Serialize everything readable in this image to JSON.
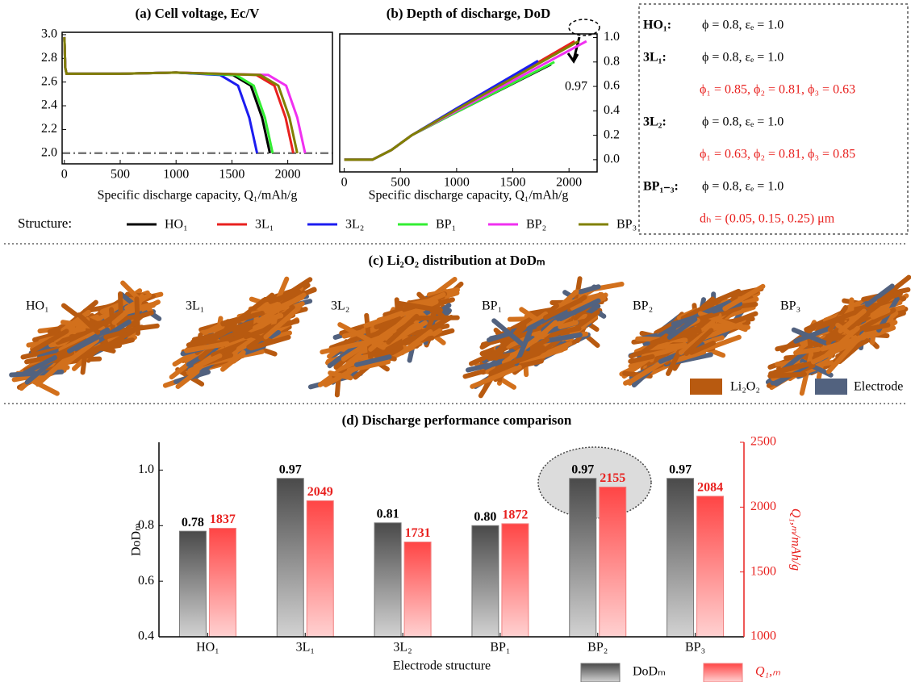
{
  "chart_data": [
    {
      "type": "line",
      "title": "(a) Cell voltage, Ec/V",
      "x_label": "Specific discharge capacity, Q₁/mAh/g",
      "xlim": [
        -20,
        2400
      ],
      "xticks": [
        0,
        500,
        1000,
        1500,
        2000
      ],
      "ylim": [
        1.91,
        3.02
      ],
      "yticks": [
        {
          "value": 2,
          "label": "2.0"
        },
        2.2,
        2.4,
        2.6,
        2.8,
        {
          "value": 3,
          "label": "3.0"
        }
      ],
      "reference_line": 2,
      "series": [
        {
          "name": "HO₁",
          "color": "#000000",
          "x": [
            0,
            8,
            20,
            500,
            1000,
            1510,
            1670,
            1770,
            1840
          ],
          "values": [
            2.98,
            2.72,
            2.67,
            2.67,
            2.68,
            2.66,
            2.57,
            2.3,
            2.0
          ]
        },
        {
          "name": "3L₁",
          "color": "#e8211f",
          "x": [
            0,
            8,
            20,
            500,
            1000,
            1720,
            1880,
            1980,
            2050
          ],
          "values": [
            2.98,
            2.72,
            2.67,
            2.67,
            2.68,
            2.66,
            2.57,
            2.3,
            2.0
          ]
        },
        {
          "name": "3L₂",
          "color": "#1c1cf0",
          "x": [
            0,
            8,
            20,
            500,
            1000,
            1395,
            1555,
            1655,
            1725
          ],
          "values": [
            2.98,
            2.72,
            2.67,
            2.67,
            2.68,
            2.66,
            2.57,
            2.3,
            2.0
          ]
        },
        {
          "name": "BP₁",
          "color": "#33ee33",
          "x": [
            0,
            8,
            20,
            500,
            1000,
            1535,
            1695,
            1795,
            1865
          ],
          "values": [
            2.98,
            2.72,
            2.67,
            2.67,
            2.68,
            2.66,
            2.57,
            2.3,
            2.0
          ]
        },
        {
          "name": "BP₂",
          "color": "#f030f0",
          "x": [
            0,
            8,
            20,
            500,
            1000,
            1825,
            1985,
            2085,
            2155
          ],
          "values": [
            2.98,
            2.72,
            2.67,
            2.67,
            2.68,
            2.66,
            2.57,
            2.3,
            2.0
          ]
        },
        {
          "name": "BP₃",
          "color": "#808000",
          "x": [
            0,
            8,
            20,
            500,
            1000,
            1755,
            1915,
            2015,
            2085
          ],
          "values": [
            2.98,
            2.72,
            2.67,
            2.67,
            2.68,
            2.66,
            2.57,
            2.3,
            2.0
          ]
        }
      ]
    },
    {
      "type": "line",
      "title": "(b) Depth of discharge, DoD",
      "x_label": "Specific discharge capacity, Q₁/mAh/g",
      "xlim": [
        -40,
        2250
      ],
      "xticks": [
        0,
        500,
        1000,
        1500,
        2000
      ],
      "ylim": [
        -0.1,
        1.03
      ],
      "yticks": [
        {
          "value": 0,
          "label": "0.0"
        },
        0.2,
        0.4,
        0.6,
        0.8,
        {
          "value": 1,
          "label": "1.0"
        }
      ],
      "annotation": "0.97",
      "series": [
        {
          "color": "#000000",
          "x": [
            0,
            250,
            420,
            600,
            1000,
            1840
          ],
          "values": [
            0,
            0,
            0.08,
            0.2,
            0.39,
            0.78
          ]
        },
        {
          "color": "#e8211f",
          "x": [
            0,
            250,
            420,
            600,
            1000,
            2050
          ],
          "values": [
            0,
            0,
            0.08,
            0.2,
            0.41,
            0.97
          ]
        },
        {
          "color": "#1c1cf0",
          "x": [
            0,
            250,
            420,
            600,
            1000,
            1725
          ],
          "values": [
            0,
            0,
            0.08,
            0.2,
            0.42,
            0.81
          ]
        },
        {
          "color": "#33ee33",
          "x": [
            0,
            250,
            420,
            600,
            1000,
            1870
          ],
          "values": [
            0,
            0,
            0.08,
            0.2,
            0.39,
            0.8
          ]
        },
        {
          "color": "#f030f0",
          "x": [
            0,
            250,
            420,
            600,
            1000,
            2155
          ],
          "values": [
            0,
            0,
            0.08,
            0.2,
            0.4,
            0.97
          ]
        },
        {
          "color": "#808000",
          "x": [
            0,
            250,
            420,
            600,
            1000,
            2085
          ],
          "values": [
            0,
            0,
            0.08,
            0.2,
            0.41,
            0.97
          ]
        }
      ]
    },
    {
      "type": "bar",
      "title": "(d) Discharge performance comparison",
      "x_label": "Electrode structure",
      "y_label": "DoDₘ",
      "y2_label": "Q₁,ₘ/mAh/g",
      "categories": [
        "HO₁",
        "3L₁",
        "3L₂",
        "BP₁",
        "BP₂",
        "BP₃"
      ],
      "ylim": [
        0.4,
        1.1
      ],
      "yticks": [
        0.4,
        0.6,
        0.8,
        {
          "value": 1,
          "label": "1.0"
        }
      ],
      "y2lim": [
        1000,
        2500
      ],
      "y2ticks": [
        1000,
        1500,
        2000,
        2500
      ],
      "series": [
        {
          "name": "DoDₘ",
          "color": "#4a4a4a",
          "values": [
            0.78,
            0.97,
            0.81,
            0.8,
            0.97,
            0.97
          ],
          "value_labels": [
            "0.78",
            "0.97",
            "0.81",
            "0.80",
            "0.97",
            "0.97"
          ]
        },
        {
          "name": "Q₁,ₘ",
          "color": "#ff4545",
          "axis": "y2",
          "values": [
            1837,
            2049,
            1731,
            1872,
            2155,
            2084
          ]
        }
      ]
    }
  ],
  "legend_title": "Structure:",
  "parameters": [
    {
      "label": "HO₁:",
      "text": "ϕ = 0.8, εₑ = 1.0"
    },
    {
      "label": "3L₁:",
      "text": "ϕ = 0.8, εₑ = 1.0",
      "extra": "ϕ₁ = 0.85, ϕ₂ = 0.81, ϕ₃ = 0.63"
    },
    {
      "label": "3L₂:",
      "text": "ϕ = 0.8, εₑ = 1.0",
      "extra": "ϕ₁ = 0.63, ϕ₂ = 0.81, ϕ₃ = 0.85"
    },
    {
      "label": "BP₁₋₃:",
      "text": "ϕ = 0.8, εₑ = 1.0",
      "extra": "dₕ = (0.05, 0.15, 0.25) μm"
    }
  ],
  "structure_view": {
    "title": "(c) Li₂O₂ distribution at DoDₘ",
    "labels": [
      "HO₁",
      "3L₁",
      "3L₂",
      "BP₁",
      "BP₂",
      "BP₃"
    ],
    "legend": [
      "Li₂O₂",
      "Electrode"
    ]
  }
}
